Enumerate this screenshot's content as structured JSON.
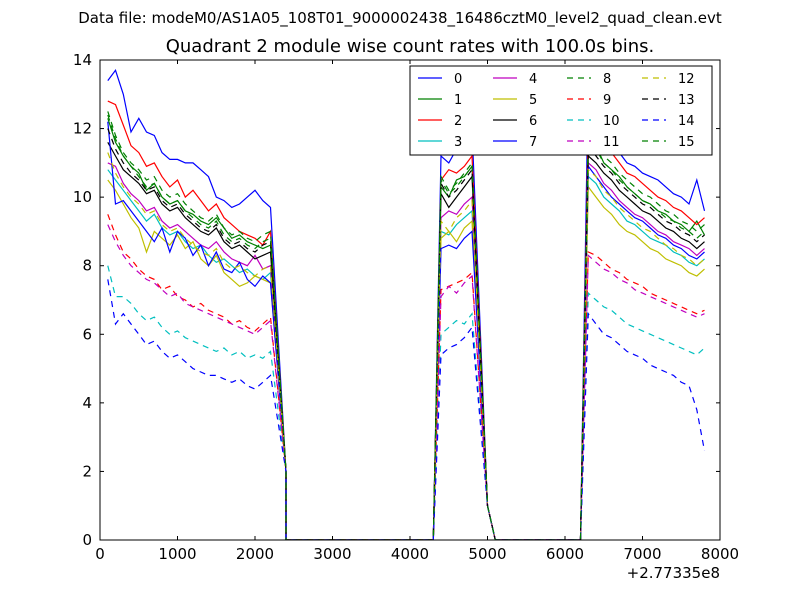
{
  "suptitle": "Data file: modeM0/AS1A05_108T01_9000002438_16486cztM0_level2_quad_clean.evt",
  "chart_data": {
    "type": "line",
    "title": "Quadrant 2 module wise count rates with 100.0s bins.",
    "xlabel": "",
    "ylabel": "",
    "xlim": [
      0,
      8000
    ],
    "ylim": [
      0,
      14
    ],
    "x_offset_label": "+2.77335e8",
    "xticks": [
      0,
      1000,
      2000,
      3000,
      4000,
      5000,
      6000,
      7000,
      8000
    ],
    "yticks": [
      0,
      2,
      4,
      6,
      8,
      10,
      12,
      14
    ],
    "grid": false,
    "legend_position": "top-right",
    "legend_columns": 4,
    "bin_width": 100,
    "segments": [
      {
        "x_start": 100,
        "x_end": 2300,
        "drop_end": 2400
      },
      {
        "x_start": 4400,
        "x_end": 4900,
        "rise_start": 4300,
        "drop_end": 5000
      },
      {
        "x_start": 6300,
        "x_end": 7900,
        "rise_start": 6200,
        "drop_end": 8000
      }
    ],
    "series": [
      {
        "name": "0",
        "color": "#0000ff",
        "dash": "solid",
        "seg1": [
          13.4,
          13.7,
          13.0,
          11.9,
          12.3,
          11.9,
          11.8,
          11.3,
          11.1,
          11.1,
          11.0,
          11.0,
          10.8,
          10.6,
          10.0,
          9.9,
          9.7,
          9.8,
          10.0,
          10.2,
          9.9,
          9.7
        ],
        "seg2": [
          11.2,
          11.0,
          11.4,
          11.6,
          12.0
        ],
        "seg3": [
          13.5,
          12.8,
          12.0,
          11.6,
          11.3,
          11.0,
          10.9,
          10.7,
          10.6,
          10.5,
          10.3,
          10.1,
          10.0,
          9.8,
          10.5,
          9.6
        ]
      },
      {
        "name": "1",
        "color": "#008000",
        "dash": "solid",
        "seg1": [
          12.3,
          11.6,
          11.2,
          10.9,
          10.7,
          10.2,
          10.4,
          10.0,
          9.8,
          9.9,
          9.6,
          9.5,
          9.3,
          9.2,
          9.4,
          9.1,
          8.8,
          8.9,
          8.7,
          8.6,
          8.5,
          8.6
        ],
        "seg2": [
          10.3,
          10.0,
          10.5,
          10.6,
          10.9
        ],
        "seg3": [
          11.8,
          11.5,
          11.0,
          10.8,
          10.6,
          10.3,
          10.1,
          9.9,
          9.8,
          9.6,
          9.5,
          9.3,
          9.2,
          9.0,
          9.3,
          8.9
        ]
      },
      {
        "name": "2",
        "color": "#ff0000",
        "dash": "solid",
        "seg1": [
          12.8,
          12.7,
          12.1,
          11.5,
          11.3,
          10.9,
          11.0,
          10.6,
          10.3,
          10.5,
          10.0,
          10.2,
          9.9,
          9.6,
          9.8,
          9.4,
          9.2,
          9.0,
          8.9,
          8.8,
          8.6,
          9.0
        ],
        "seg2": [
          10.5,
          10.8,
          10.7,
          10.9,
          11.2
        ],
        "seg3": [
          12.1,
          12.0,
          11.6,
          11.3,
          11.0,
          10.7,
          10.6,
          10.4,
          10.2,
          10.0,
          9.9,
          9.7,
          9.6,
          9.4,
          9.2,
          9.4
        ]
      },
      {
        "name": "3",
        "color": "#00bfbf",
        "dash": "solid",
        "seg1": [
          10.8,
          10.5,
          10.2,
          9.9,
          9.6,
          9.3,
          9.5,
          9.1,
          8.9,
          9.0,
          8.7,
          8.5,
          8.6,
          8.3,
          8.1,
          8.2,
          8.0,
          7.8,
          7.9,
          7.7,
          7.6,
          7.8
        ],
        "seg2": [
          9.0,
          8.9,
          9.2,
          9.4,
          9.6
        ],
        "seg3": [
          10.6,
          10.4,
          10.0,
          9.8,
          9.6,
          9.3,
          9.2,
          9.0,
          8.8,
          8.7,
          8.6,
          8.4,
          8.3,
          8.1,
          8.0,
          8.2
        ]
      },
      {
        "name": "4",
        "color": "#bf00bf",
        "dash": "solid",
        "seg1": [
          11.0,
          10.9,
          10.4,
          10.1,
          9.9,
          9.6,
          9.7,
          9.3,
          9.1,
          9.2,
          9.0,
          8.8,
          8.6,
          8.5,
          8.7,
          8.4,
          8.2,
          8.1,
          8.0,
          8.3,
          7.9,
          8.0
        ],
        "seg2": [
          9.4,
          9.6,
          9.5,
          9.8,
          10.0
        ],
        "seg3": [
          11.0,
          10.8,
          10.4,
          10.2,
          9.9,
          9.7,
          9.5,
          9.4,
          9.2,
          9.0,
          8.9,
          8.7,
          8.6,
          8.5,
          8.3,
          8.5
        ]
      },
      {
        "name": "5",
        "color": "#bfbf00",
        "dash": "solid",
        "seg1": [
          10.5,
          10.2,
          9.8,
          9.4,
          9.1,
          8.4,
          9.0,
          8.8,
          8.6,
          8.9,
          8.5,
          8.7,
          8.2,
          8.0,
          8.3,
          7.8,
          7.6,
          7.4,
          7.5,
          7.7,
          7.6,
          7.5
        ],
        "seg2": [
          8.8,
          9.0,
          8.7,
          9.1,
          9.3
        ],
        "seg3": [
          10.3,
          10.0,
          9.7,
          9.5,
          9.2,
          9.0,
          8.9,
          8.7,
          8.5,
          8.4,
          8.2,
          8.1,
          8.0,
          7.8,
          7.7,
          7.9
        ]
      },
      {
        "name": "6",
        "color": "#000000",
        "dash": "solid",
        "seg1": [
          11.6,
          11.2,
          10.8,
          10.6,
          10.4,
          10.1,
          10.2,
          9.8,
          9.6,
          9.7,
          9.4,
          9.2,
          9.0,
          8.9,
          9.1,
          8.7,
          8.5,
          8.6,
          8.4,
          8.2,
          8.3,
          8.4
        ],
        "seg2": [
          10.1,
          9.7,
          10.0,
          10.3,
          10.6
        ],
        "seg3": [
          11.2,
          11.0,
          10.7,
          10.5,
          10.2,
          10.0,
          9.8,
          9.6,
          9.5,
          9.3,
          9.1,
          9.0,
          8.8,
          8.7,
          8.5,
          8.7
        ]
      },
      {
        "name": "7",
        "color": "#0000ff",
        "dash": "solid",
        "seg1": [
          12.2,
          9.8,
          9.9,
          9.6,
          9.3,
          9.0,
          8.7,
          9.1,
          8.4,
          9.0,
          8.8,
          8.3,
          8.6,
          8.0,
          8.4,
          7.9,
          7.8,
          8.1,
          7.6,
          7.4,
          7.7,
          7.5
        ],
        "seg2": [
          8.5,
          8.6,
          8.5,
          8.8,
          9.0
        ],
        "seg3": [
          10.9,
          10.6,
          10.3,
          10.0,
          9.8,
          9.6,
          9.4,
          9.3,
          9.1,
          8.9,
          8.8,
          8.6,
          8.5,
          8.3,
          8.2,
          8.4
        ]
      },
      {
        "name": "8",
        "color": "#008000",
        "dash": "dashed",
        "seg1": [
          12.5,
          11.8,
          11.3,
          11.0,
          10.8,
          10.5,
          10.6,
          10.2,
          10.0,
          10.1,
          9.8,
          9.6,
          9.4,
          9.3,
          9.5,
          9.1,
          8.9,
          9.0,
          8.8,
          8.7,
          8.9,
          9.0
        ],
        "seg2": [
          10.6,
          10.2,
          10.4,
          10.7,
          11.0
        ],
        "seg3": [
          11.9,
          11.6,
          11.2,
          11.0,
          10.7,
          10.5,
          10.3,
          10.1,
          10.0,
          9.8,
          9.6,
          9.5,
          9.3,
          9.2,
          9.0,
          9.2
        ]
      },
      {
        "name": "9",
        "color": "#ff0000",
        "dash": "dashed",
        "seg1": [
          9.5,
          8.9,
          8.4,
          8.2,
          7.9,
          7.7,
          7.6,
          7.3,
          7.4,
          7.1,
          7.0,
          6.8,
          6.9,
          6.7,
          6.6,
          6.5,
          6.3,
          6.4,
          6.2,
          6.1,
          6.3,
          6.5
        ],
        "seg2": [
          7.3,
          7.4,
          7.5,
          7.6,
          7.8
        ],
        "seg3": [
          8.4,
          8.3,
          8.1,
          7.9,
          7.8,
          7.6,
          7.5,
          7.4,
          7.2,
          7.1,
          7.0,
          6.9,
          6.8,
          6.7,
          6.6,
          6.7
        ]
      },
      {
        "name": "10",
        "color": "#00bfbf",
        "dash": "dashed",
        "seg1": [
          8.0,
          7.1,
          7.1,
          6.9,
          6.6,
          6.4,
          6.5,
          6.2,
          6.0,
          6.1,
          5.9,
          5.8,
          5.7,
          5.6,
          5.5,
          5.6,
          5.4,
          5.5,
          5.3,
          5.4,
          5.3,
          5.5
        ],
        "seg2": [
          6.0,
          6.2,
          6.4,
          6.3,
          6.6
        ],
        "seg3": [
          7.2,
          7.0,
          6.8,
          6.7,
          6.5,
          6.3,
          6.2,
          6.1,
          6.0,
          5.9,
          5.8,
          5.7,
          5.6,
          5.5,
          5.4,
          5.6
        ]
      },
      {
        "name": "11",
        "color": "#bf00bf",
        "dash": "dashed",
        "seg1": [
          9.2,
          8.7,
          8.3,
          8.0,
          7.8,
          7.6,
          7.5,
          7.3,
          7.1,
          7.2,
          6.9,
          6.8,
          6.7,
          6.6,
          6.5,
          6.4,
          6.3,
          6.2,
          6.1,
          6.0,
          6.2,
          6.4
        ],
        "seg2": [
          7.1,
          7.4,
          7.2,
          7.5,
          7.7
        ],
        "seg3": [
          8.3,
          8.1,
          7.9,
          7.8,
          7.6,
          7.5,
          7.3,
          7.2,
          7.1,
          7.0,
          6.9,
          6.8,
          6.7,
          6.6,
          6.5,
          6.6
        ]
      },
      {
        "name": "12",
        "color": "#bfbf00",
        "dash": "dashed",
        "seg1": [
          11.3,
          10.7,
          10.3,
          10.0,
          9.8,
          9.5,
          9.6,
          9.2,
          9.0,
          9.1,
          8.8,
          8.6,
          8.4,
          8.3,
          8.5,
          8.1,
          7.9,
          8.0,
          7.8,
          7.7,
          7.9,
          8.0
        ],
        "seg2": [
          9.3,
          9.0,
          9.4,
          9.6,
          9.9
        ],
        "seg3": [
          10.8,
          10.6,
          10.2,
          10.0,
          9.7,
          9.5,
          9.3,
          9.1,
          9.0,
          8.8,
          8.6,
          8.5,
          8.3,
          8.2,
          8.0,
          8.2
        ]
      },
      {
        "name": "13",
        "color": "#000000",
        "dash": "dashed",
        "seg1": [
          12.0,
          11.4,
          11.0,
          10.7,
          10.5,
          10.2,
          10.3,
          9.9,
          9.7,
          9.8,
          9.5,
          9.3,
          9.1,
          9.0,
          9.2,
          8.8,
          8.6,
          8.7,
          8.5,
          8.4,
          8.6,
          8.7
        ],
        "seg2": [
          10.4,
          10.0,
          10.2,
          10.5,
          10.8
        ],
        "seg3": [
          11.5,
          11.2,
          10.9,
          10.7,
          10.4,
          10.2,
          10.0,
          9.8,
          9.7,
          9.5,
          9.3,
          9.2,
          9.0,
          8.9,
          8.7,
          8.9
        ]
      },
      {
        "name": "14",
        "color": "#0000ff",
        "dash": "dashed",
        "seg1": [
          7.6,
          6.3,
          6.6,
          6.3,
          6.0,
          5.7,
          5.8,
          5.5,
          5.3,
          5.4,
          5.2,
          5.0,
          4.9,
          4.8,
          4.8,
          4.7,
          4.6,
          4.7,
          4.5,
          4.4,
          4.6,
          4.8
        ],
        "seg2": [
          5.4,
          5.6,
          5.7,
          5.9,
          6.2
        ],
        "seg3": [
          6.6,
          6.3,
          6.0,
          5.9,
          5.7,
          5.5,
          5.4,
          5.3,
          5.1,
          5.0,
          4.9,
          4.8,
          4.6,
          4.5,
          3.8,
          2.6
        ]
      },
      {
        "name": "15",
        "color": "#008000",
        "dash": "dashed",
        "seg1": [
          12.4,
          11.7,
          11.2,
          10.9,
          10.6,
          10.3,
          10.4,
          10.0,
          9.8,
          9.9,
          9.6,
          9.4,
          9.2,
          9.1,
          9.3,
          8.9,
          8.7,
          8.8,
          8.6,
          8.5,
          8.7,
          8.8
        ],
        "seg2": [
          10.5,
          10.1,
          10.3,
          10.6,
          10.9
        ],
        "seg3": [
          11.7,
          11.4,
          11.0,
          10.8,
          10.5,
          10.3,
          10.1,
          9.9,
          9.8,
          9.6,
          9.4,
          9.3,
          9.1,
          9.0,
          8.8,
          9.0
        ]
      }
    ]
  }
}
